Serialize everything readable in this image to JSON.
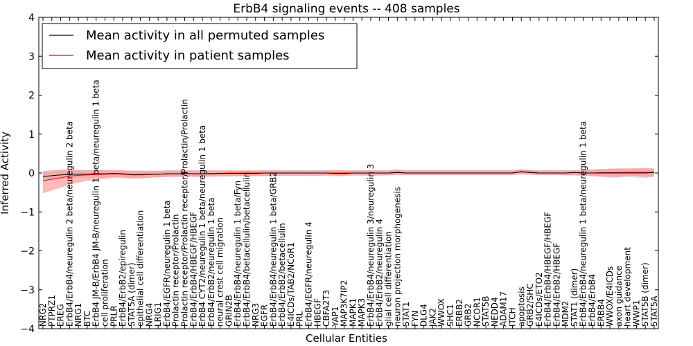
{
  "chart_data": {
    "type": "line",
    "title": "ErbB4 signaling events -- 408 samples",
    "xlabel": "Cellular Entities",
    "ylabel": "Inferred Activity",
    "ylim": [
      -4,
      4
    ],
    "yticks": [
      -4,
      -3,
      -2,
      -1,
      0,
      1,
      2,
      3,
      4
    ],
    "grid": false,
    "legend_position": "top-left",
    "colors": {
      "permuted": "#000000",
      "patient": "#ff0000",
      "permuted_band": "#bdbdbd",
      "patient_band": "#ff8080"
    },
    "legend": [
      {
        "label": "Mean activity in all permuted samples",
        "color": "#000000"
      },
      {
        "label": "Mean activity in patient samples",
        "color": "#ff0000"
      }
    ],
    "categories": [
      "NRG2",
      "PTPRZ1",
      "EREG",
      "ErbB4/ErbB4/neuregulin 2 beta/neuregulin 2 beta",
      "NRG1",
      "BTC",
      "ErbB4 JM-B/ErbB4 JM-B/neuregulin 1 beta/neuregulin 1 beta",
      "cell proliferation",
      "PRLR",
      "ErbB4/ErbB2/epiregulin",
      "STAT5A (dimer)",
      "epithelial cell differentiation",
      "NRG4",
      "LRIG1",
      "ErbB4/EGFR/neuregulin 1 beta",
      "Prolactin receptor/Prolactin",
      "Prolactin receptor/Prolactin receptor/Prolactin/Prolactin",
      "ErbB4/ErbB4/HBEGF/HBEGF",
      "ErbB4 CYT2/neuregulin 1 beta/neuregulin 1 beta",
      "ErbB4/ErbB2/neuregulin 1 beta",
      "neural crest cell migration",
      "GRIN2B",
      "ErbB4/ErbB4/neuregulin 1 beta/Fyn",
      "ErbB4/ErbB4/betacellulin/betacellulin",
      "NRG3",
      "EGFR",
      "ErbB4/ErbB4/neuregulin 1 beta/GRB2",
      "ErbB4/ErbB2/betacellulin",
      "E4ICDs/TAB2/NCoR1",
      "PRL",
      "ErbB4/EGFR/neuregulin 4",
      "HBEGF",
      "CBFA2T3",
      "YAP1",
      "MAP3K7IP2",
      "MAPK1",
      "MAPK3",
      "ErbB4/ErbB4/neuregulin 3/neuregulin 3",
      "ErbB4/ErbB2/neuregulin 4",
      "glial cell differentiation",
      "neuron projection morphogenesis",
      "STAT1",
      "FYN",
      "DLG4",
      "JAK2",
      "WWOX",
      "SHC1",
      "ERBB2",
      "GRB2",
      "NCOR1",
      "STAT5B",
      "NEDD4",
      "ADAM17",
      "ITCH",
      "apoptosis",
      "GRB2/SHC",
      "E4ICDs/ETO2",
      "ErbB4/ErbB4/HBEGF/HBEGF",
      "ErbB4/ErbB2/HBEGF",
      "MDM2",
      "STAT1 (dimer)",
      "ErbB4/ErbB4/neuregulin 1 beta/neuregulin 1 beta",
      "ErbB4/ErbB4",
      "ERBB4",
      "WWOX/E4ICDs",
      "axon guidance",
      "heart development",
      "WWP1",
      "STAT5B (dimer)",
      "STAT5A"
    ],
    "series": [
      {
        "name": "Mean activity in all permuted samples",
        "color": "#000000",
        "values": [
          -0.09,
          -0.07,
          -0.05,
          -0.04,
          -0.03,
          -0.03,
          -0.02,
          -0.02,
          -0.01,
          -0.02,
          -0.04,
          -0.04,
          -0.03,
          -0.03,
          -0.02,
          -0.02,
          -0.01,
          -0.02,
          -0.02,
          -0.02,
          -0.01,
          -0.01,
          -0.01,
          -0.01,
          -0.01,
          0.0,
          0.0,
          0.0,
          0.0,
          0.0,
          0.0,
          0.0,
          0.0,
          -0.01,
          -0.01,
          0.0,
          0.0,
          0.0,
          0.0,
          0.0,
          0.01,
          0.0,
          0.0,
          0.0,
          0.0,
          0.0,
          0.0,
          0.0,
          0.0,
          0.0,
          0.0,
          0.0,
          0.0,
          0.0,
          0.03,
          0.01,
          0.0,
          0.0,
          0.0,
          0.0,
          0.01,
          0.0,
          0.0,
          0.0,
          0.0,
          0.0,
          0.0,
          0.0,
          0.0,
          0.01
        ],
        "lower": [
          -0.2,
          -0.18,
          -0.16,
          -0.14,
          -0.13,
          -0.12,
          -0.11,
          -0.11,
          -0.1,
          -0.11,
          -0.13,
          -0.13,
          -0.12,
          -0.11,
          -0.1,
          -0.1,
          -0.09,
          -0.1,
          -0.1,
          -0.09,
          -0.09,
          -0.09,
          -0.09,
          -0.08,
          -0.08,
          -0.08,
          -0.08,
          -0.07,
          -0.07,
          -0.07,
          -0.08,
          -0.08,
          -0.07,
          -0.09,
          -0.08,
          -0.07,
          -0.07,
          -0.07,
          -0.07,
          -0.06,
          -0.06,
          -0.06,
          -0.06,
          -0.06,
          -0.06,
          -0.06,
          -0.06,
          -0.06,
          -0.06,
          -0.06,
          -0.06,
          -0.06,
          -0.06,
          -0.06,
          -0.04,
          -0.05,
          -0.06,
          -0.06,
          -0.06,
          -0.06,
          -0.06,
          -0.07,
          -0.08,
          -0.1,
          -0.12,
          -0.12,
          -0.1,
          -0.12,
          -0.13,
          -0.1
        ],
        "upper": [
          0.03,
          0.04,
          0.06,
          0.07,
          0.07,
          0.07,
          0.07,
          0.07,
          0.07,
          0.06,
          0.05,
          0.05,
          0.05,
          0.05,
          0.06,
          0.06,
          0.06,
          0.06,
          0.06,
          0.06,
          0.06,
          0.06,
          0.06,
          0.06,
          0.06,
          0.07,
          0.07,
          0.07,
          0.07,
          0.07,
          0.07,
          0.07,
          0.07,
          0.07,
          0.07,
          0.07,
          0.07,
          0.07,
          0.07,
          0.07,
          0.08,
          0.07,
          0.07,
          0.07,
          0.07,
          0.07,
          0.07,
          0.07,
          0.07,
          0.07,
          0.07,
          0.07,
          0.07,
          0.07,
          0.09,
          0.07,
          0.07,
          0.07,
          0.07,
          0.07,
          0.07,
          0.08,
          0.09,
          0.1,
          0.11,
          0.11,
          0.1,
          0.12,
          0.14,
          0.1
        ]
      },
      {
        "name": "Mean activity in patient samples",
        "color": "#ff0000",
        "values": [
          -0.2,
          -0.16,
          -0.12,
          -0.08,
          -0.06,
          -0.05,
          -0.04,
          -0.03,
          -0.02,
          -0.03,
          -0.05,
          -0.05,
          -0.04,
          -0.03,
          -0.02,
          -0.02,
          -0.01,
          -0.02,
          -0.02,
          -0.01,
          -0.01,
          0.0,
          0.0,
          0.0,
          0.0,
          0.0,
          0.0,
          0.0,
          0.0,
          0.0,
          0.0,
          0.0,
          0.0,
          0.0,
          0.0,
          0.0,
          0.0,
          0.0,
          0.0,
          0.0,
          0.02,
          0.0,
          0.0,
          0.0,
          0.0,
          0.0,
          0.0,
          0.0,
          0.0,
          0.0,
          0.0,
          0.0,
          0.0,
          0.0,
          0.04,
          0.02,
          0.0,
          0.0,
          0.0,
          0.0,
          0.01,
          0.0,
          0.0,
          0.01,
          0.01,
          0.01,
          0.02,
          0.02,
          0.02,
          0.02
        ],
        "lower": [
          -0.52,
          -0.45,
          -0.38,
          -0.3,
          -0.25,
          -0.2,
          -0.17,
          -0.15,
          -0.12,
          -0.12,
          -0.14,
          -0.14,
          -0.12,
          -0.11,
          -0.1,
          -0.1,
          -0.09,
          -0.1,
          -0.1,
          -0.09,
          -0.09,
          -0.08,
          -0.08,
          -0.08,
          -0.08,
          -0.08,
          -0.08,
          -0.07,
          -0.07,
          -0.07,
          -0.07,
          -0.07,
          -0.06,
          -0.07,
          -0.07,
          -0.06,
          -0.06,
          -0.06,
          -0.06,
          -0.06,
          -0.05,
          -0.05,
          -0.05,
          -0.05,
          -0.05,
          -0.05,
          -0.05,
          -0.05,
          -0.05,
          -0.05,
          -0.05,
          -0.05,
          -0.05,
          -0.05,
          -0.02,
          -0.04,
          -0.05,
          -0.05,
          -0.05,
          -0.06,
          -0.06,
          -0.07,
          -0.08,
          -0.09,
          -0.1,
          -0.1,
          -0.08,
          -0.08,
          -0.1,
          -0.09
        ],
        "upper": [
          0.05,
          0.07,
          0.09,
          0.09,
          0.08,
          0.08,
          0.08,
          0.08,
          0.08,
          0.07,
          0.06,
          0.06,
          0.06,
          0.06,
          0.07,
          0.07,
          0.07,
          0.07,
          0.07,
          0.07,
          0.07,
          0.07,
          0.07,
          0.07,
          0.07,
          0.07,
          0.07,
          0.07,
          0.07,
          0.07,
          0.07,
          0.07,
          0.07,
          0.07,
          0.07,
          0.07,
          0.07,
          0.07,
          0.07,
          0.07,
          0.09,
          0.07,
          0.07,
          0.07,
          0.07,
          0.07,
          0.07,
          0.07,
          0.07,
          0.07,
          0.07,
          0.07,
          0.07,
          0.07,
          0.1,
          0.08,
          0.07,
          0.07,
          0.07,
          0.07,
          0.07,
          0.08,
          0.09,
          0.1,
          0.11,
          0.12,
          0.12,
          0.12,
          0.12,
          0.12
        ]
      }
    ]
  }
}
